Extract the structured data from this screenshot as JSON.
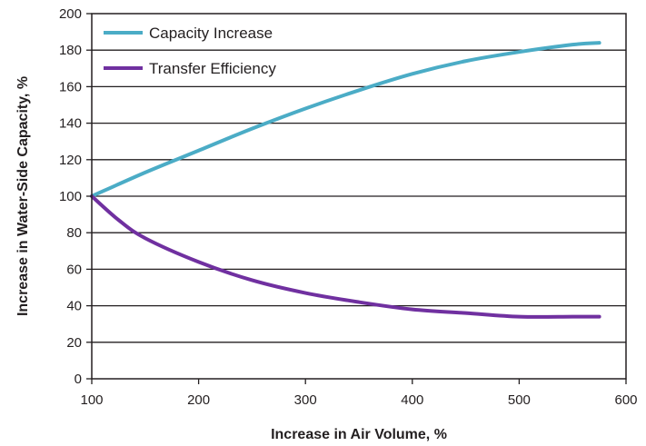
{
  "chart_data": {
    "type": "line",
    "title": "",
    "xlabel": "Increase in Air Volume, %",
    "ylabel": "Increase in Water-Side Capacity, %",
    "xlim": [
      100,
      600
    ],
    "ylim": [
      0,
      200
    ],
    "xticks": [
      100,
      200,
      300,
      400,
      500,
      600
    ],
    "yticks": [
      0,
      20,
      40,
      60,
      80,
      100,
      120,
      140,
      160,
      180,
      200
    ],
    "grid": "horizontal",
    "legend_position": "top-left",
    "series": [
      {
        "name": "Capacity Increase",
        "color": "#4bacc6",
        "x": [
          100,
          150,
          200,
          250,
          300,
          350,
          400,
          450,
          500,
          550,
          575
        ],
        "y": [
          100,
          113,
          125,
          137,
          148,
          158,
          167,
          174,
          179,
          183,
          184
        ]
      },
      {
        "name": "Transfer Efficiency",
        "color": "#7030a0",
        "x": [
          100,
          125,
          150,
          200,
          250,
          300,
          350,
          400,
          450,
          500,
          550,
          575
        ],
        "y": [
          100,
          87,
          77,
          64,
          54,
          47,
          42,
          38,
          36,
          34,
          34,
          34
        ]
      }
    ]
  }
}
